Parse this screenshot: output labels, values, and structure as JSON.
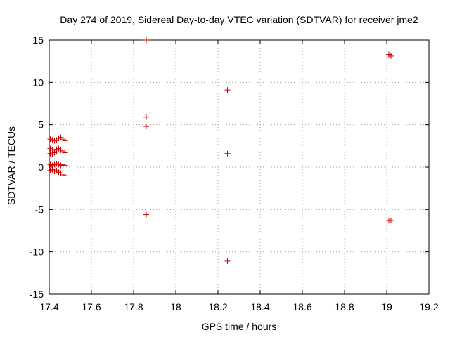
{
  "chart_data": {
    "type": "scatter",
    "title": "Day 274 of 2019, Sidereal Day-to-day VTEC variation (SDTVAR) for receiver jme2",
    "xlabel": "GPS time / hours",
    "ylabel": "SDTVAR / TECUs",
    "xlim": [
      17.4,
      19.2
    ],
    "ylim": [
      -15,
      15
    ],
    "xticks": [
      "17.4",
      "17.6",
      "17.8",
      "18",
      "18.2",
      "18.4",
      "18.6",
      "18.8",
      "19",
      "19.2"
    ],
    "yticks": [
      "15",
      "10",
      "5",
      "0",
      "-5",
      "-10",
      "-15"
    ],
    "grid": true,
    "marker": "+",
    "color": "#cc0000",
    "series": [
      {
        "name": "SDTVAR",
        "points": [
          [
            17.405,
            3.3
          ],
          [
            17.415,
            3.2
          ],
          [
            17.425,
            3.1
          ],
          [
            17.435,
            3.2
          ],
          [
            17.445,
            3.4
          ],
          [
            17.455,
            3.5
          ],
          [
            17.465,
            3.3
          ],
          [
            17.475,
            3.1
          ],
          [
            17.405,
            2.2
          ],
          [
            17.415,
            2.0
          ],
          [
            17.425,
            1.8
          ],
          [
            17.435,
            2.1
          ],
          [
            17.445,
            2.2
          ],
          [
            17.455,
            2.0
          ],
          [
            17.465,
            1.9
          ],
          [
            17.475,
            1.7
          ],
          [
            17.405,
            1.6
          ],
          [
            17.415,
            1.5
          ],
          [
            17.425,
            1.7
          ],
          [
            17.435,
            1.8
          ],
          [
            17.405,
            0.3
          ],
          [
            17.415,
            0.2
          ],
          [
            17.425,
            0.3
          ],
          [
            17.435,
            0.4
          ],
          [
            17.445,
            0.3
          ],
          [
            17.455,
            0.2
          ],
          [
            17.465,
            0.3
          ],
          [
            17.475,
            0.2
          ],
          [
            17.405,
            -0.4
          ],
          [
            17.415,
            -0.3
          ],
          [
            17.425,
            -0.5
          ],
          [
            17.435,
            -0.4
          ],
          [
            17.445,
            -0.6
          ],
          [
            17.455,
            -0.7
          ],
          [
            17.465,
            -0.9
          ],
          [
            17.475,
            -1.0
          ],
          [
            17.86,
            15.0
          ],
          [
            17.86,
            5.9
          ],
          [
            17.86,
            4.8
          ],
          [
            17.86,
            -5.6
          ],
          [
            18.245,
            9.1
          ],
          [
            18.245,
            1.6
          ],
          [
            18.245,
            -11.1
          ],
          [
            19.01,
            13.3
          ],
          [
            19.02,
            13.1
          ],
          [
            19.01,
            -6.3
          ],
          [
            19.02,
            -6.3
          ]
        ]
      }
    ]
  }
}
